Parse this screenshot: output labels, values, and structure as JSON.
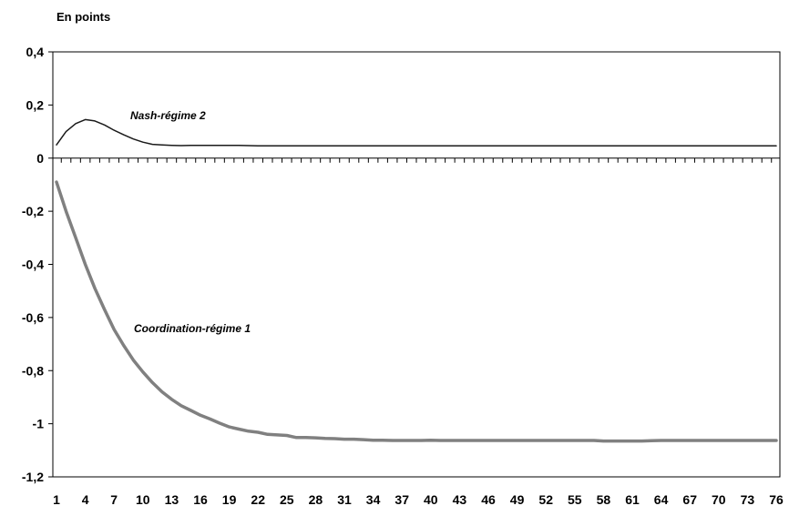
{
  "chart_data": {
    "type": "line",
    "unit_label": "En points",
    "x": [
      1,
      2,
      3,
      4,
      5,
      6,
      7,
      8,
      9,
      10,
      11,
      12,
      13,
      14,
      15,
      16,
      17,
      18,
      19,
      20,
      21,
      22,
      23,
      24,
      25,
      26,
      27,
      28,
      29,
      30,
      31,
      32,
      33,
      34,
      35,
      36,
      37,
      38,
      39,
      40,
      41,
      42,
      43,
      44,
      45,
      46,
      47,
      48,
      49,
      50,
      51,
      52,
      53,
      54,
      55,
      56,
      57,
      58,
      59,
      60,
      61,
      62,
      63,
      64,
      65,
      66,
      67,
      68,
      69,
      70,
      71,
      72,
      73,
      74,
      75,
      76
    ],
    "x_tick_labels": [
      "1",
      "4",
      "7",
      "10",
      "13",
      "16",
      "19",
      "22",
      "25",
      "28",
      "31",
      "34",
      "37",
      "40",
      "43",
      "46",
      "49",
      "52",
      "55",
      "58",
      "61",
      "64",
      "67",
      "70",
      "73",
      "76"
    ],
    "y_tick_labels": [
      "0,4",
      "0,2",
      "0",
      "-0,2",
      "-0,4",
      "-0,6",
      "-0,8",
      "-1",
      "-1,2"
    ],
    "ylim": [
      -1.2,
      0.4
    ],
    "xlim": [
      1,
      76
    ],
    "grid": false,
    "series": [
      {
        "name": "Nash-régime 2",
        "color": "#1a1a1a",
        "values": [
          0.05,
          0.1,
          0.13,
          0.145,
          0.14,
          0.125,
          0.105,
          0.088,
          0.072,
          0.06,
          0.052,
          0.05,
          0.048,
          0.047,
          0.048,
          0.048,
          0.048,
          0.048,
          0.048,
          0.048,
          0.047,
          0.046,
          0.046,
          0.046,
          0.046,
          0.046,
          0.046,
          0.046,
          0.046,
          0.046,
          0.046,
          0.046,
          0.046,
          0.046,
          0.046,
          0.046,
          0.046,
          0.046,
          0.046,
          0.046,
          0.046,
          0.046,
          0.046,
          0.046,
          0.046,
          0.046,
          0.046,
          0.046,
          0.046,
          0.046,
          0.046,
          0.046,
          0.046,
          0.046,
          0.046,
          0.046,
          0.046,
          0.046,
          0.046,
          0.046,
          0.046,
          0.046,
          0.046,
          0.046,
          0.046,
          0.046,
          0.046,
          0.046,
          0.046,
          0.046,
          0.046,
          0.046,
          0.046,
          0.046,
          0.046,
          0.046
        ]
      },
      {
        "name": "Coordination-régime 1",
        "color": "#808080",
        "values": [
          -0.09,
          -0.2,
          -0.3,
          -0.4,
          -0.49,
          -0.57,
          -0.645,
          -0.705,
          -0.76,
          -0.805,
          -0.845,
          -0.88,
          -0.908,
          -0.932,
          -0.95,
          -0.968,
          -0.982,
          -0.998,
          -1.012,
          -1.02,
          -1.028,
          -1.032,
          -1.04,
          -1.042,
          -1.044,
          -1.052,
          -1.052,
          -1.053,
          -1.055,
          -1.056,
          -1.058,
          -1.058,
          -1.06,
          -1.062,
          -1.062,
          -1.063,
          -1.063,
          -1.063,
          -1.063,
          -1.062,
          -1.063,
          -1.063,
          -1.063,
          -1.063,
          -1.063,
          -1.063,
          -1.063,
          -1.063,
          -1.063,
          -1.063,
          -1.063,
          -1.063,
          -1.063,
          -1.063,
          -1.063,
          -1.063,
          -1.063,
          -1.065,
          -1.065,
          -1.065,
          -1.065,
          -1.065,
          -1.064,
          -1.063,
          -1.063,
          -1.063,
          -1.063,
          -1.063,
          -1.063,
          -1.063,
          -1.063,
          -1.063,
          -1.063,
          -1.063,
          -1.063,
          -1.063
        ]
      }
    ]
  }
}
